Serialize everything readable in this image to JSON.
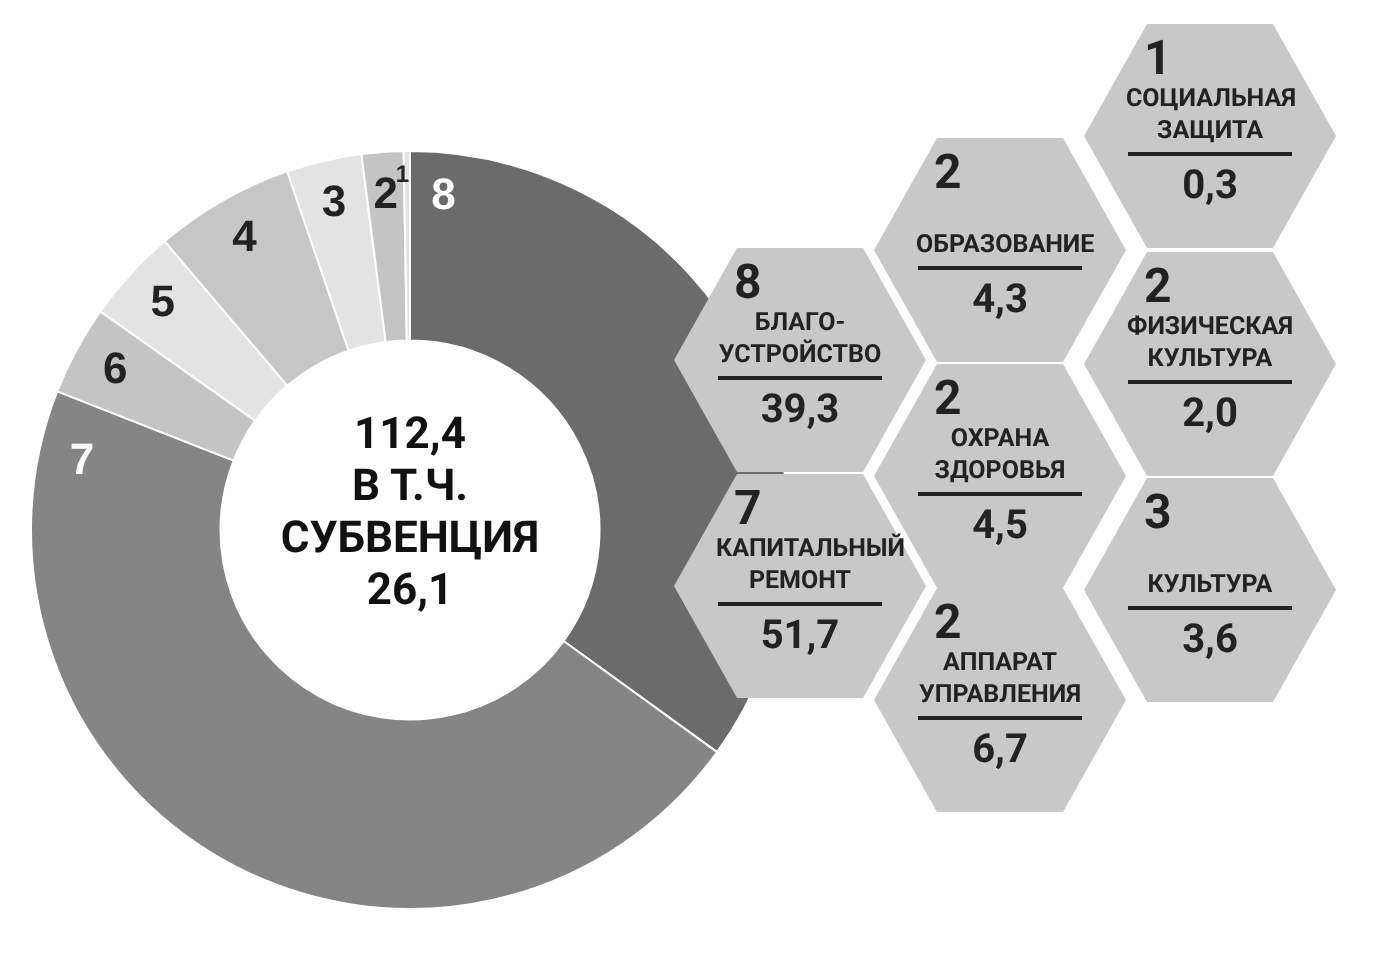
{
  "chart_data": {
    "type": "donut",
    "title": "112,4\nВ Т.Ч.\nСУБВЕНЦИЯ\n26,1",
    "categories": [
      "8",
      "7",
      "6",
      "5",
      "4",
      "3",
      "2",
      "1"
    ],
    "values": [
      39.3,
      51.7,
      4.3,
      4.5,
      6.7,
      3.6,
      2.0,
      0.3
    ],
    "colors": [
      "#6b6b6b",
      "#858585",
      "#c4c4c4",
      "#e3e3e3",
      "#c6c6c6",
      "#e3e3e3",
      "#c4c4c4",
      "#e3e3e3"
    ],
    "annotations": [
      "8",
      "БЛАГО-УСТРОЙСТВО",
      "39,3",
      "7",
      "КАПИТАЛЬНЫЙ РЕМОНТ",
      "51,7",
      "2",
      "ОБРАЗОВАНИЕ",
      "4,3",
      "2",
      "ОХРАНА ЗДОРОВЬЯ",
      "4,5",
      "2",
      "АППАРАТ УПРАВЛЕНИЯ",
      "6,7",
      "3",
      "КУЛЬТУРА",
      "3,6",
      "2",
      "ФИЗИЧЕСКАЯ КУЛЬТУРА",
      "2,0",
      "1",
      "СОЦИАЛЬНАЯ ЗАЩИТА",
      "0,3"
    ],
    "legend": false
  }
}
